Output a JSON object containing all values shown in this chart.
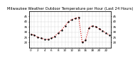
{
  "title": "Milwaukee Weather Outdoor Temperature per Hour (Last 24 Hours)",
  "hours": [
    0,
    1,
    2,
    3,
    4,
    5,
    6,
    7,
    8,
    9,
    10,
    11,
    12,
    13,
    14,
    15,
    16,
    17,
    18,
    19,
    20,
    21,
    22,
    23
  ],
  "temps": [
    28,
    27,
    25,
    24,
    23,
    23,
    24,
    26,
    29,
    32,
    36,
    40,
    42,
    43,
    44,
    20,
    22,
    34,
    36,
    35,
    33,
    31,
    29,
    27
  ],
  "line_color": "#cc0000",
  "marker_color": "#000000",
  "bg_color": "#ffffff",
  "grid_color": "#bbbbbb",
  "ylim_min": 15,
  "ylim_max": 50,
  "yticks": [
    20,
    25,
    30,
    35,
    40,
    45
  ],
  "title_fontsize": 3.8,
  "tick_fontsize": 3.0,
  "line_width": 0.8,
  "marker_size": 1.5
}
